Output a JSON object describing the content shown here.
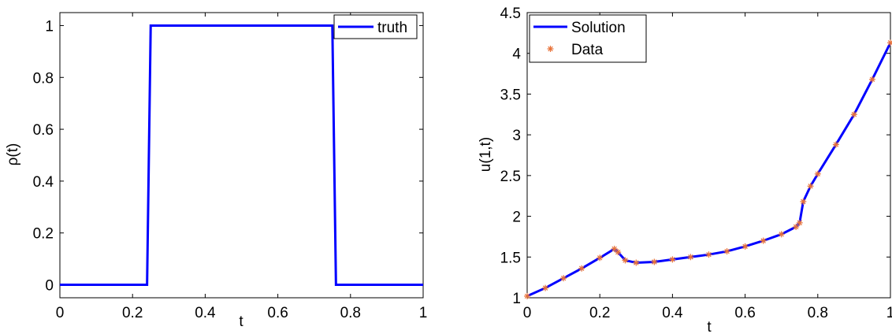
{
  "chart_data": [
    {
      "type": "line",
      "xlabel": "t",
      "ylabel": "ρ(t)",
      "xlim": [
        0,
        1
      ],
      "ylim": [
        -0.05,
        1.05
      ],
      "xticks": [
        0,
        0.2,
        0.4,
        0.6,
        0.8,
        1
      ],
      "xtick_labels": [
        "0",
        "0.2",
        "0.4",
        "0.6",
        "0.8",
        "1"
      ],
      "yticks": [
        0,
        0.2,
        0.4,
        0.6,
        0.8,
        1
      ],
      "ytick_labels": [
        "0",
        "0.2",
        "0.4",
        "0.6",
        "0.8",
        "1"
      ],
      "grid": false,
      "legend_position": "top-right",
      "series": [
        {
          "name": "truth",
          "style": "line",
          "color": "#0000ff",
          "x": [
            0,
            0.24,
            0.25,
            0.75,
            0.76,
            1
          ],
          "y": [
            0,
            0,
            1,
            1,
            0,
            0
          ]
        }
      ]
    },
    {
      "type": "line",
      "xlabel": "t",
      "ylabel": "u(1,t)",
      "xlim": [
        0,
        1
      ],
      "ylim": [
        1,
        4.5
      ],
      "xticks": [
        0,
        0.2,
        0.4,
        0.6,
        0.8,
        1
      ],
      "xtick_labels": [
        "0",
        "0.2",
        "0.4",
        "0.6",
        "0.8",
        "1"
      ],
      "yticks": [
        1,
        1.5,
        2,
        2.5,
        3,
        3.5,
        4,
        4.5
      ],
      "ytick_labels": [
        "1",
        "1.5",
        "2",
        "2.5",
        "3",
        "3.5",
        "4",
        "4.5"
      ],
      "grid": false,
      "legend_position": "top-left",
      "series": [
        {
          "name": "Solution",
          "style": "line",
          "color": "#0000ff",
          "x": [
            0,
            0.05,
            0.1,
            0.15,
            0.2,
            0.24,
            0.25,
            0.27,
            0.3,
            0.35,
            0.4,
            0.45,
            0.5,
            0.55,
            0.6,
            0.65,
            0.7,
            0.74,
            0.75,
            0.76,
            0.78,
            0.8,
            0.85,
            0.9,
            0.95,
            1
          ],
          "y": [
            1.02,
            1.12,
            1.24,
            1.36,
            1.49,
            1.6,
            1.56,
            1.46,
            1.43,
            1.44,
            1.47,
            1.5,
            1.53,
            1.57,
            1.63,
            1.7,
            1.78,
            1.87,
            1.92,
            2.18,
            2.37,
            2.52,
            2.88,
            3.25,
            3.68,
            4.13
          ]
        },
        {
          "name": "Data",
          "style": "marker",
          "marker": "*",
          "color": "#e8733a",
          "x": [
            0,
            0.05,
            0.1,
            0.15,
            0.2,
            0.24,
            0.25,
            0.27,
            0.3,
            0.35,
            0.4,
            0.45,
            0.5,
            0.55,
            0.6,
            0.65,
            0.7,
            0.74,
            0.75,
            0.76,
            0.78,
            0.8,
            0.85,
            0.9,
            0.95,
            1
          ],
          "y": [
            1.02,
            1.12,
            1.24,
            1.36,
            1.49,
            1.6,
            1.56,
            1.46,
            1.43,
            1.44,
            1.47,
            1.5,
            1.53,
            1.57,
            1.63,
            1.7,
            1.78,
            1.87,
            1.92,
            2.18,
            2.37,
            2.52,
            2.88,
            3.25,
            3.68,
            4.13
          ]
        }
      ]
    }
  ]
}
